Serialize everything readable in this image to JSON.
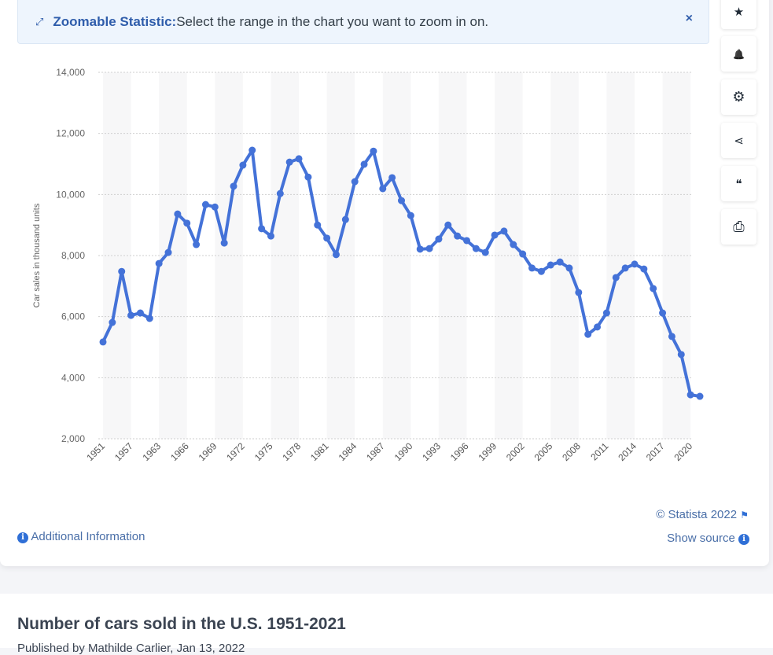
{
  "banner": {
    "label": "Zoomable Statistic:",
    "text": "Select the range in the chart you want to zoom in on.",
    "close": "×",
    "icon": "expand-arrows-icon"
  },
  "sidebar": [
    {
      "icon": "star-icon",
      "glyph": "★"
    },
    {
      "icon": "bell-icon",
      "glyph": "🔔"
    },
    {
      "icon": "gear-icon",
      "glyph": "⚙"
    },
    {
      "icon": "share-icon",
      "glyph": "⋖"
    },
    {
      "icon": "quote-icon",
      "glyph": "❝"
    },
    {
      "icon": "print-icon",
      "glyph": "⎙"
    }
  ],
  "footer": {
    "copyright": "© Statista 2022",
    "additional_info": "Additional Information",
    "show_source": "Show source"
  },
  "article": {
    "title": "Number of cars sold in the U.S. 1951-2021",
    "published": "Published by Mathilde Carlier, Jan 13, 2022"
  },
  "chart_data": {
    "type": "line",
    "ylabel": "Car sales in thousand units",
    "ylim": [
      2000,
      14000
    ],
    "yticks": [
      2000,
      4000,
      6000,
      8000,
      10000,
      12000,
      14000
    ],
    "grid": true,
    "color": "#4472d8",
    "categories": [
      "1951",
      "1953",
      "1955",
      "1957",
      "1959",
      "1961",
      "1963",
      "1964",
      "1965",
      "1966",
      "1967",
      "1968",
      "1969",
      "1970",
      "1971",
      "1972",
      "1973",
      "1974",
      "1975",
      "1976",
      "1977",
      "1978",
      "1979",
      "1980",
      "1981",
      "1982",
      "1983",
      "1984",
      "1985",
      "1986",
      "1987",
      "1988",
      "1989",
      "1990",
      "1991",
      "1992",
      "1993",
      "1994",
      "1995",
      "1996",
      "1997",
      "1998",
      "1999",
      "2000",
      "2001",
      "2002",
      "2003",
      "2004",
      "2005",
      "2006",
      "2007",
      "2008",
      "2009",
      "2010",
      "2011",
      "2012",
      "2013",
      "2014",
      "2015",
      "2016",
      "2017",
      "2018",
      "2019",
      "2020",
      "2021"
    ],
    "xtick_labels": [
      "1951",
      "1957",
      "1963",
      "1966",
      "1969",
      "1972",
      "1975",
      "1978",
      "1981",
      "1984",
      "1987",
      "1990",
      "1993",
      "1996",
      "1999",
      "2002",
      "2005",
      "2008",
      "2011",
      "2014",
      "2017",
      "2020"
    ],
    "values": [
      5170,
      5810,
      7480,
      6040,
      6120,
      5940,
      7740,
      8100,
      9360,
      9060,
      8360,
      9670,
      9590,
      8410,
      10270,
      10960,
      11450,
      8880,
      8640,
      10030,
      11060,
      11170,
      10570,
      9000,
      8570,
      8030,
      9180,
      10420,
      10990,
      11420,
      10190,
      10550,
      9800,
      9310,
      8210,
      8230,
      8540,
      9000,
      8640,
      8490,
      8230,
      8100,
      8670,
      8800,
      8360,
      8050,
      7590,
      7480,
      7690,
      7790,
      7590,
      6790,
      5420,
      5660,
      6120,
      7280,
      7590,
      7720,
      7560,
      6920,
      6120,
      5350,
      4760,
      3440,
      3390
    ]
  }
}
